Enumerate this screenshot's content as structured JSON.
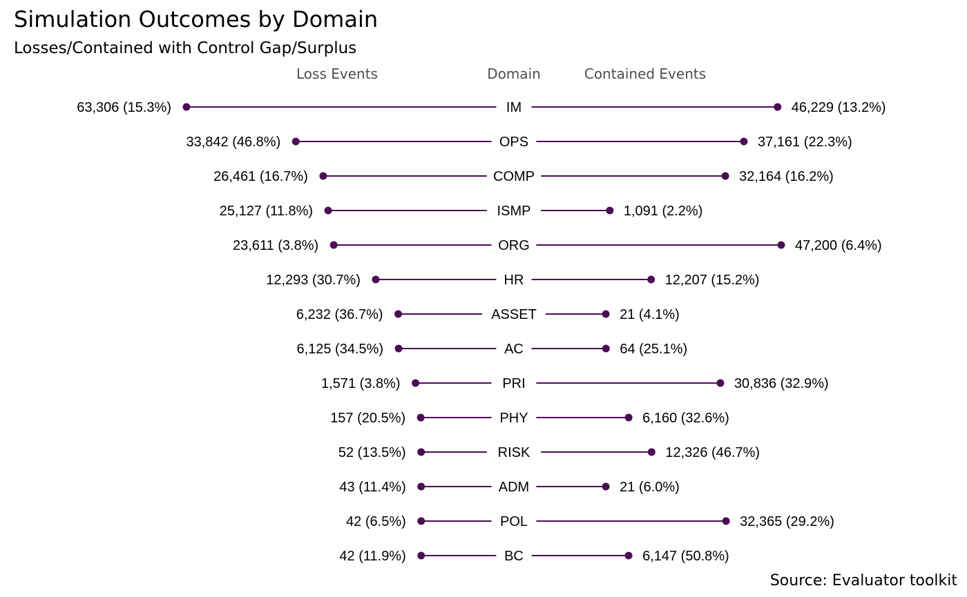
{
  "chart_data": {
    "type": "dumbbell",
    "title": "Simulation Outcomes by Domain",
    "subtitle": "Losses/Contained with Control Gap/Surplus",
    "caption": "Source: Evaluator toolkit",
    "column_headers": {
      "left": "Loss Events",
      "center": "Domain",
      "right": "Contained Events"
    },
    "categories": [
      "IM",
      "OPS",
      "COMP",
      "ISMP",
      "ORG",
      "HR",
      "ASSET",
      "AC",
      "PRI",
      "PHY",
      "RISK",
      "ADM",
      "POL",
      "BC"
    ],
    "series": [
      {
        "name": "Loss Events",
        "values": [
          63306,
          33842,
          26461,
          25127,
          23611,
          12293,
          6232,
          6125,
          1571,
          157,
          52,
          43,
          42,
          42
        ],
        "labels": [
          "63,306 (15.3%)",
          "33,842 (46.8%)",
          "26,461 (16.7%)",
          "25,127 (11.8%)",
          "23,611 (3.8%)",
          "12,293 (30.7%)",
          "6,232 (36.7%)",
          "6,125 (34.5%)",
          "1,571 (3.8%)",
          "157 (20.5%)",
          "52 (13.5%)",
          "43 (11.4%)",
          "42 (6.5%)",
          "42 (11.9%)"
        ]
      },
      {
        "name": "Contained Events",
        "values": [
          46229,
          37161,
          32164,
          1091,
          47200,
          12207,
          21,
          64,
          30836,
          6160,
          12326,
          21,
          32365,
          6147
        ],
        "labels": [
          "46,229 (13.2%)",
          "37,161 (22.3%)",
          "32,164 (16.2%)",
          "1,091 (2.2%)",
          "47,200 (6.4%)",
          "12,207 (15.2%)",
          "21 (4.1%)",
          "64 (25.1%)",
          "30,836 (32.9%)",
          "6,160 (32.6%)",
          "12,326 (46.7%)",
          "21 (6.0%)",
          "32,365 (29.2%)",
          "6,147 (50.8%)"
        ]
      }
    ],
    "point_color": "#4b0c55",
    "line_color": "#4b0c55",
    "grid": false,
    "legend": "none"
  }
}
